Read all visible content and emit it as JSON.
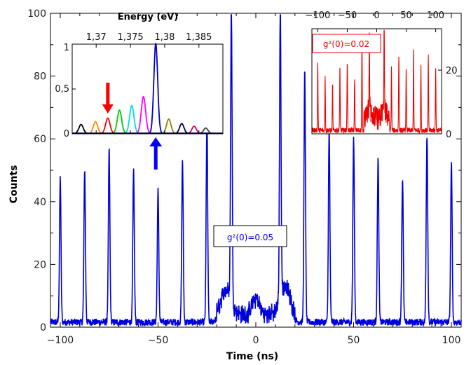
{
  "chart_data": [
    {
      "type": "line",
      "xlabel": "Time (ns)",
      "ylabel": "Counts",
      "xlim": [
        -105,
        105
      ],
      "ylim": [
        0,
        100
      ],
      "x_ticks": [
        "−100",
        "−50",
        "0",
        "50",
        "100"
      ],
      "y_ticks": [
        "0",
        "20",
        "40",
        "60",
        "80",
        "100"
      ],
      "x_tick_values": [
        -100,
        -50,
        0,
        50,
        100
      ],
      "y_tick_values": [
        0,
        20,
        40,
        60,
        80,
        100
      ],
      "color": "#0000dd",
      "annotation": "g²(0)=0.05",
      "peaks": [
        {
          "x": -100,
          "y": 46
        },
        {
          "x": -87.5,
          "y": 49
        },
        {
          "x": -75,
          "y": 55
        },
        {
          "x": -62.5,
          "y": 48
        },
        {
          "x": -50,
          "y": 42
        },
        {
          "x": -37.5,
          "y": 52
        },
        {
          "x": -25,
          "y": 65
        },
        {
          "x": -12.5,
          "y": 94
        },
        {
          "x": 0,
          "y": 5
        },
        {
          "x": 12.5,
          "y": 92
        },
        {
          "x": 25,
          "y": 80
        },
        {
          "x": 37.5,
          "y": 61
        },
        {
          "x": 50,
          "y": 59
        },
        {
          "x": 62.5,
          "y": 52
        },
        {
          "x": 75,
          "y": 46
        },
        {
          "x": 87.5,
          "y": 60
        },
        {
          "x": 100,
          "y": 51
        }
      ]
    },
    {
      "type": "line",
      "title": "Energy (eV)",
      "x_ticks": [
        "1,37",
        "1,375",
        "1,38",
        "1,385"
      ],
      "x_tick_values": [
        1.37,
        1.375,
        1.38,
        1.385
      ],
      "y_ticks": [
        "0",
        "0,5",
        "1"
      ],
      "y_tick_values": [
        0,
        0.5,
        1
      ],
      "xlim": [
        1.3665,
        1.3885
      ],
      "ylim": [
        0,
        1
      ],
      "series": [
        {
          "center": 1.3678,
          "height": 0.1,
          "color": "#000000"
        },
        {
          "center": 1.3699,
          "height": 0.13,
          "color": "#ff8800"
        },
        {
          "center": 1.3717,
          "height": 0.17,
          "color": "#ff0000"
        },
        {
          "center": 1.3734,
          "height": 0.26,
          "color": "#00cc00"
        },
        {
          "center": 1.3752,
          "height": 0.31,
          "color": "#00dddd"
        },
        {
          "center": 1.3769,
          "height": 0.41,
          "color": "#ff00ff"
        },
        {
          "center": 1.3787,
          "height": 1.0,
          "color": "#0000cc"
        },
        {
          "center": 1.3806,
          "height": 0.16,
          "color": "#888800"
        },
        {
          "center": 1.3825,
          "height": 0.11,
          "color": "#000044"
        },
        {
          "center": 1.3843,
          "height": 0.08,
          "color": "#cc0066"
        },
        {
          "center": 1.386,
          "height": 0.06,
          "color": "#444444"
        }
      ],
      "markers": [
        {
          "x": 1.3717,
          "direction": "down",
          "color": "#ff0000"
        },
        {
          "x": 1.3787,
          "direction": "up",
          "color": "#0000ff"
        }
      ]
    },
    {
      "type": "line",
      "x_ticks": [
        "−100",
        "−50",
        "0",
        "50",
        "100"
      ],
      "x_tick_values": [
        -100,
        -50,
        0,
        50,
        100
      ],
      "y_ticks": [
        "0",
        "20"
      ],
      "y_tick_values": [
        0,
        20
      ],
      "xlim": [
        -110,
        110
      ],
      "ylim": [
        0,
        33
      ],
      "color": "#ee0000",
      "annotation": "g²(0)=0.02",
      "peak_heights": [
        21,
        17,
        15,
        20,
        22,
        16,
        29,
        24,
        1,
        30,
        20,
        23,
        19,
        25,
        20,
        23,
        20
      ]
    }
  ]
}
